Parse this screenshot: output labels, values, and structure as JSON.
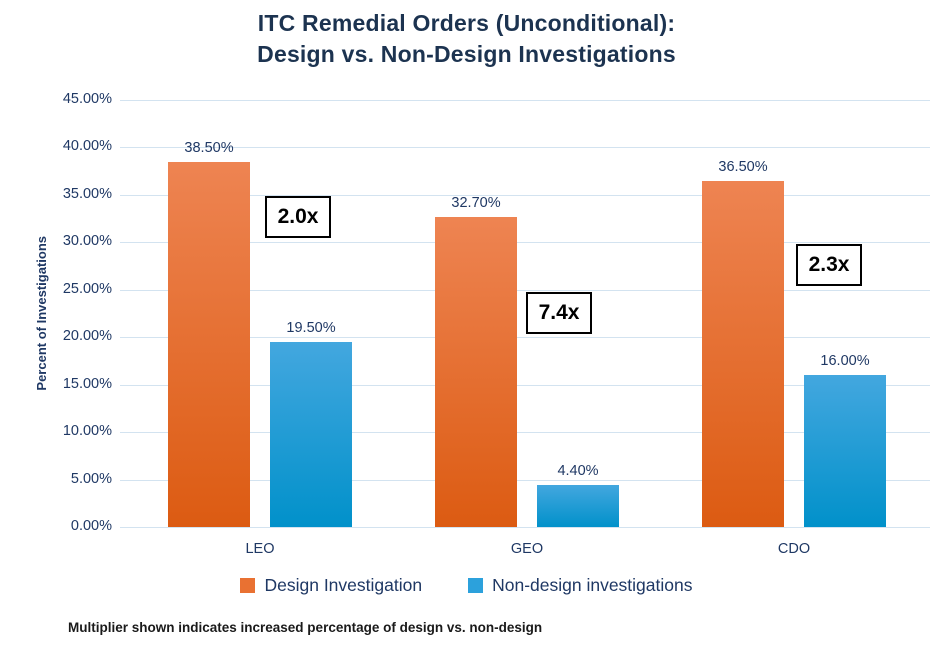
{
  "chart_data": {
    "type": "bar",
    "title": "ITC Remedial Orders (Unconditional): Design vs. Non-Design Investigations",
    "title_line1": "ITC Remedial Orders (Unconditional):",
    "title_line2": "Design vs. Non-Design Investigations",
    "ylabel": "Percent of Investigations",
    "xlabel": "",
    "ylim": [
      0,
      45
    ],
    "ytick_step": 5,
    "ytick_labels": [
      "45.00%",
      "40.00%",
      "35.00%",
      "30.00%",
      "25.00%",
      "20.00%",
      "15.00%",
      "10.00%",
      "5.00%",
      "0.00%"
    ],
    "categories": [
      "LEO",
      "GEO",
      "CDO"
    ],
    "series": [
      {
        "name": "Design Investigation",
        "values": [
          38.5,
          32.7,
          36.5
        ],
        "data_labels": [
          "38.50%",
          "32.70%",
          "36.50%"
        ],
        "color_top": "#EE8452",
        "color_bottom": "#DC5B12",
        "legend_color": "#E97132"
      },
      {
        "name": "Non-design investigations",
        "values": [
          19.5,
          4.4,
          16.0
        ],
        "data_labels": [
          "19.50%",
          "4.40%",
          "16.00%"
        ],
        "color_top": "#43A7DF",
        "color_bottom": "#0191CA",
        "legend_color": "#2CA1DC"
      }
    ],
    "multipliers": [
      {
        "label": "2.0x",
        "category": "LEO"
      },
      {
        "label": "7.4x",
        "category": "GEO"
      },
      {
        "label": "2.3x",
        "category": "CDO"
      }
    ],
    "grid": true,
    "legend_position": "bottom"
  },
  "footnote": "Multiplier shown indicates increased percentage of design vs. non-design",
  "colors": {
    "title_text": "#1C3350",
    "axis_text": "#1F3864",
    "gridline": "#D3E3F0",
    "multiplier_text": "#000000",
    "footnote_text": "#1A1A1A",
    "background": "#FFFFFF"
  }
}
